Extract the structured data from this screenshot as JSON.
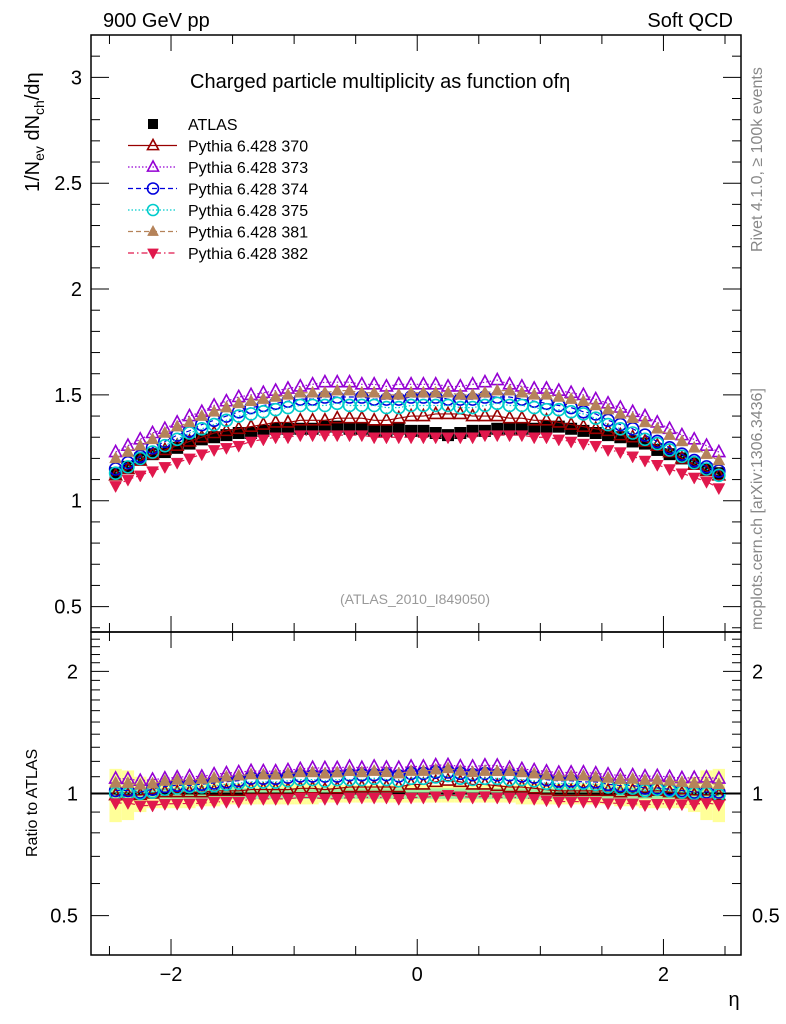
{
  "header": {
    "left_label": "900 GeV pp",
    "right_label": "Soft QCD"
  },
  "side_labels": {
    "rivet": "Rivet 4.1.0, ≥ 100k events",
    "mcplots": "mcplots.cern.ch [arXiv:1306.3436]"
  },
  "chart_data": [
    {
      "type": "scatter",
      "title": "Charged particle multiplicity as function ofη",
      "xlabel": "η",
      "ylabel": "1/N_ev dN_ch/dη",
      "ylabel_parts": {
        "a": "1/N",
        "a_sub": "ev",
        "b": " dN",
        "b_sub": "ch",
        "c": "/dη"
      },
      "xlim": [
        -2.65,
        2.63
      ],
      "ylim": [
        0.38,
        3.2
      ],
      "yticks": [
        0.5,
        1,
        1.5,
        2,
        2.5,
        3
      ],
      "ytick_labels": [
        "0.5",
        "1",
        "1.5",
        "2",
        "2.5",
        "3"
      ],
      "xticks": [
        -2,
        0,
        2
      ],
      "xtick_labels": [
        "−2",
        "0",
        "2"
      ],
      "annotation": "(ATLAS_2010_I849050)",
      "legend_position": "top-left",
      "x": [
        -2.45,
        -2.35,
        -2.25,
        -2.15,
        -2.05,
        -1.95,
        -1.85,
        -1.75,
        -1.65,
        -1.55,
        -1.45,
        -1.35,
        -1.25,
        -1.15,
        -1.05,
        -0.95,
        -0.85,
        -0.75,
        -0.65,
        -0.55,
        -0.45,
        -0.35,
        -0.25,
        -0.15,
        -0.05,
        0.05,
        0.15,
        0.25,
        0.35,
        0.45,
        0.55,
        0.65,
        0.75,
        0.85,
        0.95,
        1.05,
        1.15,
        1.25,
        1.35,
        1.45,
        1.55,
        1.65,
        1.75,
        1.85,
        1.95,
        2.05,
        2.15,
        2.25,
        2.35,
        2.45
      ],
      "series": [
        {
          "name": "ATLAS",
          "color": "#000000",
          "marker": "square-filled",
          "values": [
            1.13,
            1.16,
            1.2,
            1.22,
            1.23,
            1.25,
            1.27,
            1.29,
            1.3,
            1.31,
            1.32,
            1.32,
            1.33,
            1.34,
            1.34,
            1.34,
            1.34,
            1.35,
            1.35,
            1.34,
            1.34,
            1.33,
            1.33,
            1.34,
            1.33,
            1.33,
            1.32,
            1.31,
            1.32,
            1.33,
            1.33,
            1.34,
            1.34,
            1.34,
            1.34,
            1.35,
            1.35,
            1.34,
            1.33,
            1.32,
            1.31,
            1.3,
            1.28,
            1.27,
            1.24,
            1.22,
            1.2,
            1.18,
            1.15,
            1.13
          ]
        },
        {
          "name": "Pythia 6.428 370",
          "color": "#990000",
          "marker": "triangle-up-open",
          "line": "solid",
          "values": [
            1.12,
            1.15,
            1.19,
            1.22,
            1.24,
            1.26,
            1.28,
            1.3,
            1.32,
            1.33,
            1.34,
            1.35,
            1.36,
            1.37,
            1.37,
            1.38,
            1.38,
            1.38,
            1.39,
            1.39,
            1.39,
            1.38,
            1.38,
            1.39,
            1.4,
            1.4,
            1.41,
            1.41,
            1.41,
            1.4,
            1.4,
            1.4,
            1.39,
            1.39,
            1.38,
            1.38,
            1.37,
            1.36,
            1.35,
            1.34,
            1.33,
            1.31,
            1.3,
            1.28,
            1.26,
            1.23,
            1.2,
            1.17,
            1.14,
            1.12
          ]
        },
        {
          "name": "Pythia 6.428 373",
          "color": "#9400d3",
          "marker": "triangle-up-open",
          "line": "dotted",
          "values": [
            1.23,
            1.26,
            1.29,
            1.32,
            1.34,
            1.37,
            1.4,
            1.42,
            1.45,
            1.47,
            1.49,
            1.5,
            1.51,
            1.52,
            1.53,
            1.54,
            1.55,
            1.56,
            1.56,
            1.56,
            1.55,
            1.55,
            1.54,
            1.55,
            1.55,
            1.55,
            1.55,
            1.54,
            1.54,
            1.55,
            1.56,
            1.57,
            1.55,
            1.54,
            1.53,
            1.53,
            1.52,
            1.51,
            1.5,
            1.48,
            1.46,
            1.44,
            1.42,
            1.4,
            1.37,
            1.34,
            1.31,
            1.29,
            1.26,
            1.23
          ]
        },
        {
          "name": "Pythia 6.428 374",
          "color": "#0000dd",
          "marker": "circle-open",
          "line": "dashed",
          "values": [
            1.15,
            1.18,
            1.21,
            1.25,
            1.28,
            1.31,
            1.33,
            1.36,
            1.38,
            1.4,
            1.42,
            1.44,
            1.45,
            1.46,
            1.47,
            1.48,
            1.48,
            1.49,
            1.49,
            1.49,
            1.49,
            1.48,
            1.48,
            1.48,
            1.49,
            1.49,
            1.49,
            1.48,
            1.48,
            1.48,
            1.49,
            1.49,
            1.49,
            1.48,
            1.47,
            1.46,
            1.45,
            1.44,
            1.42,
            1.41,
            1.38,
            1.36,
            1.34,
            1.31,
            1.28,
            1.25,
            1.22,
            1.19,
            1.16,
            1.14
          ]
        },
        {
          "name": "Pythia 6.428 375",
          "color": "#00cccc",
          "marker": "circle-open",
          "line": "dotted",
          "values": [
            1.13,
            1.16,
            1.2,
            1.23,
            1.26,
            1.29,
            1.32,
            1.34,
            1.36,
            1.38,
            1.4,
            1.41,
            1.42,
            1.43,
            1.44,
            1.45,
            1.45,
            1.45,
            1.46,
            1.45,
            1.45,
            1.45,
            1.44,
            1.44,
            1.45,
            1.45,
            1.45,
            1.45,
            1.44,
            1.44,
            1.45,
            1.46,
            1.45,
            1.45,
            1.44,
            1.43,
            1.43,
            1.42,
            1.41,
            1.39,
            1.36,
            1.34,
            1.32,
            1.29,
            1.27,
            1.24,
            1.21,
            1.18,
            1.15,
            1.12
          ]
        },
        {
          "name": "Pythia 6.428 381",
          "color": "#b5835a",
          "marker": "triangle-up-filled",
          "line": "dashed",
          "values": [
            1.2,
            1.23,
            1.26,
            1.29,
            1.32,
            1.35,
            1.37,
            1.4,
            1.42,
            1.44,
            1.46,
            1.47,
            1.48,
            1.49,
            1.5,
            1.51,
            1.51,
            1.51,
            1.52,
            1.52,
            1.51,
            1.51,
            1.5,
            1.5,
            1.51,
            1.51,
            1.51,
            1.51,
            1.5,
            1.5,
            1.51,
            1.52,
            1.52,
            1.51,
            1.5,
            1.5,
            1.49,
            1.48,
            1.47,
            1.45,
            1.43,
            1.41,
            1.39,
            1.37,
            1.34,
            1.31,
            1.28,
            1.25,
            1.22,
            1.19
          ]
        },
        {
          "name": "Pythia 6.428 382",
          "color": "#e0184c",
          "marker": "triangle-down-filled",
          "line": "dashdot",
          "values": [
            1.07,
            1.1,
            1.12,
            1.14,
            1.16,
            1.18,
            1.2,
            1.22,
            1.24,
            1.25,
            1.26,
            1.28,
            1.29,
            1.3,
            1.3,
            1.31,
            1.31,
            1.31,
            1.31,
            1.31,
            1.31,
            1.3,
            1.3,
            1.3,
            1.3,
            1.3,
            1.3,
            1.3,
            1.3,
            1.3,
            1.31,
            1.31,
            1.31,
            1.31,
            1.3,
            1.3,
            1.29,
            1.28,
            1.27,
            1.26,
            1.24,
            1.23,
            1.21,
            1.19,
            1.17,
            1.15,
            1.13,
            1.11,
            1.09,
            1.06
          ]
        }
      ]
    },
    {
      "type": "scatter",
      "title": "",
      "xlabel": "η",
      "ylabel": "Ratio to ATLAS",
      "yscale": "log",
      "ylim": [
        0.4,
        2.5
      ],
      "yticks": [
        0.5,
        1,
        2
      ],
      "ytick_labels": [
        "0.5",
        "1",
        "2"
      ],
      "xticks": [
        -2,
        0,
        2
      ],
      "xtick_labels": [
        "−2",
        "0",
        "2"
      ],
      "bands": {
        "stat_color": "#9fef9f",
        "total_color": "#ffff99",
        "total_halfwidth": [
          0.15,
          0.14,
          0.1,
          0.08,
          0.08,
          0.08,
          0.08,
          0.07,
          0.07,
          0.06,
          0.06,
          0.06,
          0.06,
          0.06,
          0.06,
          0.06,
          0.06,
          0.05,
          0.05,
          0.05,
          0.05,
          0.05,
          0.05,
          0.05,
          0.05,
          0.05,
          0.05,
          0.05,
          0.05,
          0.05,
          0.05,
          0.05,
          0.05,
          0.06,
          0.06,
          0.06,
          0.06,
          0.06,
          0.06,
          0.06,
          0.06,
          0.07,
          0.07,
          0.08,
          0.08,
          0.08,
          0.08,
          0.1,
          0.14,
          0.15
        ],
        "stat_halfwidth": 0.03
      }
    }
  ]
}
